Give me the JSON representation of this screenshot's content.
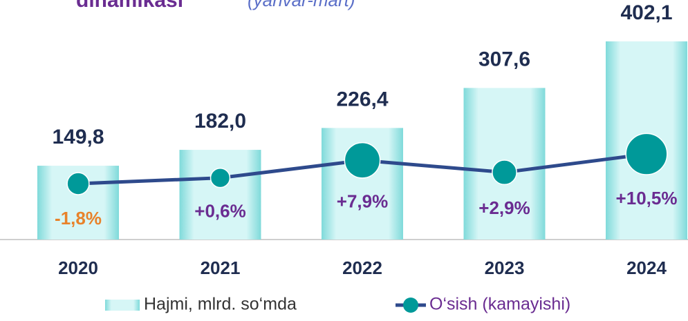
{
  "chart_data": {
    "type": "bar_line",
    "title": "dinamikasi",
    "subtitle": "(yanvar-mart)",
    "categories": [
      "2020",
      "2021",
      "2022",
      "2023",
      "2024"
    ],
    "ylim": [
      0,
      430
    ],
    "y2lim": [
      -25,
      63
    ],
    "series": [
      {
        "name": "Hajmi, mlrd. so‘mda",
        "type": "bar",
        "color": "#b8ecec",
        "values": [
          149.8,
          182.0,
          226.4,
          307.6,
          402.1
        ],
        "value_labels": [
          "149,8",
          "182,0",
          "226,4",
          "307,6",
          "402,1"
        ]
      },
      {
        "name": "O‘sish (kamayishi)",
        "type": "line",
        "axis": "y2",
        "color": "#009999",
        "line_color": "#2e4a8c",
        "label_color": "#6a2c91",
        "negative_label_color": "#e8822a",
        "values": [
          -1.8,
          0.6,
          7.9,
          2.9,
          10.5
        ],
        "value_labels": [
          "-1,8%",
          "+0,6%",
          "+7,9%",
          "+2,9%",
          "+10,5%"
        ]
      }
    ]
  }
}
